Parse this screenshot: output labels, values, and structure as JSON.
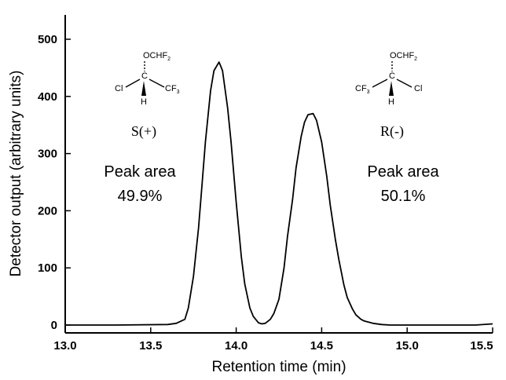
{
  "chart_data": {
    "type": "line",
    "xlabel": "Retention time (min)",
    "ylabel": "Detector output (arbitrary units)",
    "xlim": [
      13.0,
      15.5
    ],
    "ylim": [
      0,
      500
    ],
    "xticks": [
      "13.0",
      "13.5",
      "14.0",
      "14.5",
      "15.0",
      "15.5"
    ],
    "yticks": [
      "0",
      "100",
      "200",
      "300",
      "400",
      "500"
    ],
    "grid": false,
    "series": [
      {
        "x": [
          13.0,
          13.3,
          13.6,
          13.65,
          13.7,
          13.72,
          13.75,
          13.78,
          13.8,
          13.82,
          13.85,
          13.87,
          13.9,
          13.92,
          13.95,
          13.97,
          14.0,
          14.03,
          14.05,
          14.08,
          14.1,
          14.13,
          14.15,
          14.17,
          14.2,
          14.22,
          14.25,
          14.28,
          14.3,
          14.33,
          14.35,
          14.38,
          14.4,
          14.42,
          14.45,
          14.47,
          14.5,
          14.53,
          14.55,
          14.58,
          14.6,
          14.63,
          14.65,
          14.68,
          14.7,
          14.73,
          14.75,
          14.8,
          14.85,
          14.9,
          15.0,
          15.2,
          15.4,
          15.5
        ],
        "y": [
          0,
          0,
          1,
          3,
          10,
          30,
          85,
          170,
          245,
          320,
          410,
          445,
          460,
          445,
          380,
          320,
          215,
          120,
          72,
          30,
          15,
          4,
          2,
          3,
          10,
          20,
          45,
          100,
          155,
          220,
          275,
          330,
          355,
          368,
          370,
          358,
          320,
          260,
          210,
          150,
          115,
          70,
          48,
          28,
          18,
          10,
          7,
          3,
          1,
          0,
          0,
          0,
          0,
          2
        ]
      }
    ],
    "annotations": [
      {
        "text_line1": "Peak area",
        "text_line2": "49.9%"
      },
      {
        "text_line1": "Peak area",
        "text_line2": "50.1%"
      }
    ],
    "enantiomers": [
      {
        "label": "S(+)",
        "top": "OCHF",
        "top_sub": "2",
        "center": "C",
        "left": "Cl",
        "left_sub": "",
        "right": "CF",
        "right_sub": "3",
        "bottom": "H"
      },
      {
        "label": "R(-)",
        "top": "OCHF",
        "top_sub": "2",
        "center": "C",
        "left": "CF",
        "left_sub": "3",
        "right": "Cl",
        "right_sub": "",
        "bottom": "H"
      }
    ]
  }
}
